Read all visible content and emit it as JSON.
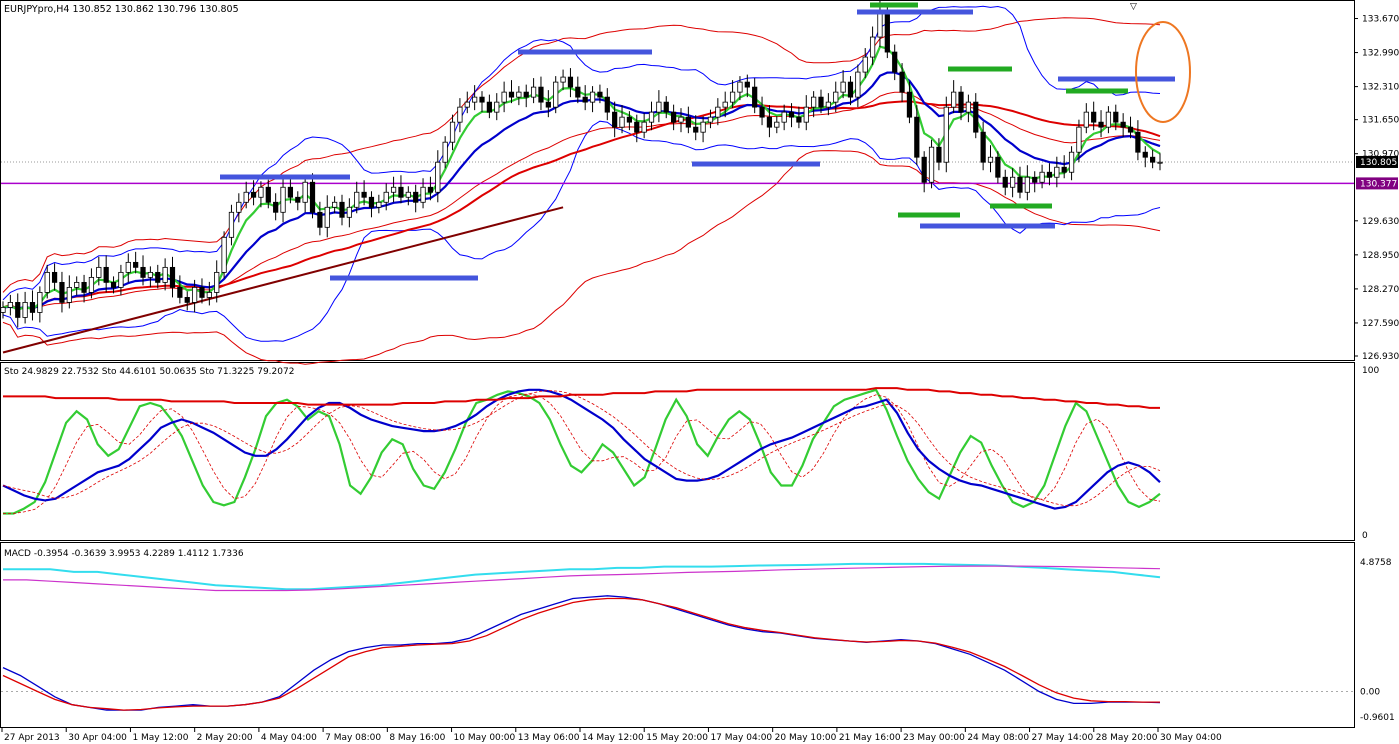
{
  "window": {
    "header": "EURJPYpro,H4  130.852 130.862 130.796 130.805",
    "top_marker": "▽"
  },
  "colors": {
    "background": "#ffffff",
    "frame": "#000000",
    "bull_candle": "#ffffff",
    "bear_candle": "#000000",
    "green": "#33cc33",
    "blue": "#0000cc",
    "thin_blue": "#0000ff",
    "red": "#dd0000",
    "dark_red": "#800000",
    "purple": "#aa00cc",
    "annotation_blue": "#4455dd",
    "annotation_green": "#22aa22",
    "orange": "#ee7722",
    "cyan": "#33ddee",
    "magenta": "#cc33cc",
    "price_tag": "#800080"
  },
  "chart_data": [
    {
      "type": "candlestick",
      "panel": "price",
      "symbol": "EURJPYpro",
      "timeframe": "H4",
      "ohlc_header": {
        "open": 130.852,
        "high": 130.862,
        "low": 130.796,
        "close": 130.805
      },
      "y_ticks": [
        "133.670",
        "132.990",
        "132.310",
        "131.650",
        "130.970",
        "129.630",
        "128.950",
        "128.270",
        "127.590",
        "126.930"
      ],
      "ylim": [
        126.85,
        134.0
      ],
      "current_price": "130.805",
      "horizontal_line": "130.377",
      "x_labels": [
        "27 Apr 2013",
        "30 Apr 04:00",
        "1 May 12:00",
        "2 May 20:00",
        "4 May 04:00",
        "7 May 08:00",
        "8 May 16:00",
        "10 May 00:00",
        "13 May 06:00",
        "14 May 12:00",
        "15 May 20:00",
        "17 May 04:00",
        "20 May 10:00",
        "21 May 16:00",
        "23 May 00:00",
        "24 May 08:00",
        "27 May 14:00",
        "28 May 20:00",
        "30 May 04:00"
      ],
      "close_series": [
        127.9,
        128.0,
        127.7,
        128.0,
        127.8,
        128.2,
        128.6,
        128.4,
        128.0,
        128.3,
        128.4,
        128.2,
        128.5,
        128.7,
        128.4,
        128.3,
        128.6,
        128.8,
        128.7,
        128.5,
        128.6,
        128.4,
        128.7,
        128.3,
        128.1,
        128.0,
        128.3,
        128.1,
        128.2,
        128.6,
        129.3,
        129.8,
        130.0,
        130.2,
        130.1,
        130.3,
        130.0,
        129.8,
        130.3,
        130.1,
        130.0,
        130.4,
        129.8,
        129.5,
        129.9,
        130.0,
        129.7,
        129.9,
        130.2,
        130.1,
        129.9,
        130.0,
        130.2,
        130.3,
        130.1,
        130.2,
        130.0,
        130.3,
        130.2,
        130.8,
        131.2,
        131.6,
        131.9,
        132.0,
        132.1,
        132.0,
        131.8,
        132.0,
        132.2,
        132.1,
        132.2,
        132.1,
        132.3,
        132.0,
        131.9,
        132.4,
        132.5,
        132.3,
        132.1,
        132.0,
        132.2,
        132.1,
        131.8,
        131.5,
        131.7,
        131.6,
        131.4,
        131.6,
        131.8,
        132.0,
        131.8,
        131.6,
        131.7,
        131.5,
        131.4,
        131.6,
        131.7,
        131.9,
        132.0,
        132.2,
        132.4,
        132.3,
        131.9,
        131.7,
        131.5,
        131.6,
        131.8,
        131.7,
        131.6,
        131.9,
        132.1,
        131.9,
        132.0,
        132.2,
        132.4,
        132.1,
        132.6,
        132.9,
        133.3,
        133.8,
        133.0,
        132.6,
        132.2,
        131.7,
        130.9,
        130.4,
        131.1,
        130.8,
        131.9,
        132.2,
        131.8,
        132.0,
        131.4,
        130.8,
        130.9,
        130.5,
        130.3,
        130.5,
        130.2,
        130.5,
        130.4,
        130.6,
        130.5,
        130.7,
        130.6,
        131.0,
        131.5,
        131.8,
        131.6,
        131.5,
        131.8,
        131.6,
        131.5,
        131.4,
        131.0,
        130.9,
        130.8,
        130.8
      ]
    },
    {
      "type": "line",
      "panel": "stochastic",
      "label": "Sto 24.9829 22.7532  Sto 44.6101 50.0635  Sto 71.3225 79.2072",
      "ylim": [
        0,
        100
      ],
      "y_ticks": [
        "100",
        "0"
      ],
      "series": [
        {
          "values": [
            13,
            13,
            16,
            20,
            32,
            50,
            68,
            75,
            70,
            55,
            48,
            52,
            65,
            78,
            80,
            78,
            70,
            60,
            45,
            30,
            20,
            18,
            20,
            35,
            52,
            72,
            80,
            82,
            78,
            70,
            75,
            72,
            55,
            30,
            25,
            35,
            50,
            58,
            55,
            40,
            30,
            28,
            38,
            52,
            68,
            80,
            82,
            85,
            87,
            86,
            84,
            80,
            70,
            55,
            42,
            38,
            45,
            55,
            50,
            40,
            30,
            35,
            52,
            70,
            82,
            72,
            55,
            48,
            60,
            70,
            75,
            70,
            55,
            38,
            30,
            30,
            42,
            58,
            68,
            78,
            82,
            84,
            86,
            88,
            76,
            60,
            45,
            34,
            26,
            22,
            36,
            50,
            60,
            56,
            42,
            30,
            20,
            17,
            20,
            30,
            48,
            66,
            80,
            75,
            60,
            45,
            30,
            20,
            17,
            20,
            25
          ]
        },
        {
          "values": [
            30,
            27,
            24,
            22,
            21,
            22,
            26,
            30,
            34,
            38,
            40,
            42,
            46,
            52,
            58,
            65,
            68,
            70,
            68,
            65,
            62,
            58,
            54,
            50,
            48,
            48,
            52,
            58,
            65,
            72,
            77,
            80,
            80,
            77,
            73,
            70,
            68,
            66,
            65,
            64,
            63,
            63,
            64,
            66,
            69,
            73,
            78,
            82,
            85,
            87,
            88,
            88,
            87,
            85,
            82,
            78,
            74,
            70,
            65,
            58,
            52,
            46,
            42,
            38,
            34,
            33,
            33,
            34,
            36,
            40,
            44,
            48,
            52,
            55,
            57,
            59,
            62,
            65,
            68,
            71,
            74,
            77,
            78,
            80,
            82,
            74,
            62,
            52,
            45,
            40,
            36,
            33,
            31,
            30,
            28,
            26,
            24,
            22,
            20,
            18,
            16,
            17,
            20,
            26,
            32,
            38,
            42,
            44,
            42,
            38,
            32
          ]
        },
        {
          "values": [
            84,
            84,
            84,
            84,
            84,
            83,
            83,
            83,
            83,
            83,
            83,
            82,
            82,
            82,
            82,
            82,
            81,
            81,
            81,
            81,
            81,
            81,
            80,
            80,
            80,
            80,
            80,
            80,
            80,
            79,
            79,
            79,
            79,
            79,
            79,
            79,
            79,
            79,
            80,
            80,
            80,
            80,
            81,
            81,
            81,
            82,
            82,
            82,
            83,
            83,
            83,
            84,
            84,
            84,
            85,
            85,
            85,
            85,
            86,
            86,
            86,
            86,
            87,
            87,
            87,
            87,
            88,
            88,
            88,
            88,
            88,
            88,
            88,
            88,
            88,
            88,
            88,
            88,
            88,
            88,
            88,
            88,
            88,
            89,
            89,
            89,
            88,
            88,
            88,
            87,
            87,
            86,
            86,
            85,
            85,
            84,
            84,
            83,
            83,
            82,
            82,
            81,
            81,
            80,
            80,
            79,
            79,
            78,
            78,
            77,
            77
          ]
        }
      ]
    },
    {
      "type": "line",
      "panel": "macd",
      "label": "MACD -0.3954 -0.3639 3.9953 4.2289 1.4112 1.7336",
      "y_ticks": [
        "4.8758",
        "0.00",
        "-0.9601"
      ],
      "ylim": [
        -1.3,
        5.4
      ],
      "series": [
        {
          "values": [
            4.6,
            4.6,
            4.6,
            4.5,
            4.5,
            4.4,
            4.3,
            4.2,
            4.1,
            4.0,
            3.95,
            3.9,
            3.85,
            3.85,
            3.9,
            3.95,
            4.0,
            4.1,
            4.2,
            4.3,
            4.4,
            4.45,
            4.5,
            4.55,
            4.6,
            4.6,
            4.65,
            4.65,
            4.7,
            4.7,
            4.7,
            4.72,
            4.74,
            4.75,
            4.76,
            4.78,
            4.8,
            4.8,
            4.8,
            4.8,
            4.78,
            4.76,
            4.74,
            4.7,
            4.66,
            4.6,
            4.55,
            4.5,
            4.4,
            4.3
          ]
        },
        {
          "values": [
            4.2,
            4.2,
            4.15,
            4.1,
            4.05,
            4.0,
            3.95,
            3.9,
            3.85,
            3.8,
            3.8,
            3.8,
            3.8,
            3.82,
            3.85,
            3.9,
            3.95,
            4.0,
            4.05,
            4.1,
            4.15,
            4.2,
            4.25,
            4.3,
            4.35,
            4.38,
            4.4,
            4.42,
            4.45,
            4.48,
            4.5,
            4.52,
            4.55,
            4.58,
            4.6,
            4.62,
            4.64,
            4.66,
            4.68,
            4.7,
            4.71,
            4.72,
            4.72,
            4.72,
            4.71,
            4.7,
            4.68,
            4.66,
            4.64,
            4.62
          ]
        },
        {
          "values": [
            0.9,
            0.6,
            0.2,
            -0.2,
            -0.5,
            -0.6,
            -0.7,
            -0.7,
            -0.7,
            -0.6,
            -0.55,
            -0.5,
            -0.55,
            -0.55,
            -0.5,
            -0.4,
            -0.2,
            0.3,
            0.8,
            1.2,
            1.5,
            1.65,
            1.75,
            1.75,
            1.8,
            1.8,
            1.85,
            2.0,
            2.3,
            2.6,
            2.9,
            3.1,
            3.3,
            3.5,
            3.55,
            3.6,
            3.55,
            3.45,
            3.3,
            3.1,
            2.9,
            2.7,
            2.5,
            2.35,
            2.25,
            2.2,
            2.1,
            2.0,
            1.95,
            1.9,
            1.85,
            1.9,
            1.95,
            1.9,
            1.8,
            1.6,
            1.4,
            1.1,
            0.8,
            0.4,
            0.0,
            -0.3,
            -0.45,
            -0.45,
            -0.4,
            -0.4,
            -0.4,
            -0.42
          ]
        },
        {
          "values": [
            0.6,
            0.3,
            0.0,
            -0.3,
            -0.5,
            -0.6,
            -0.65,
            -0.7,
            -0.68,
            -0.62,
            -0.58,
            -0.55,
            -0.55,
            -0.55,
            -0.5,
            -0.4,
            -0.25,
            0.1,
            0.5,
            0.9,
            1.3,
            1.5,
            1.65,
            1.7,
            1.75,
            1.78,
            1.8,
            1.9,
            2.1,
            2.4,
            2.7,
            2.95,
            3.15,
            3.35,
            3.45,
            3.5,
            3.5,
            3.45,
            3.3,
            3.15,
            2.95,
            2.75,
            2.55,
            2.4,
            2.3,
            2.22,
            2.12,
            2.02,
            1.96,
            1.9,
            1.86,
            1.88,
            1.92,
            1.9,
            1.82,
            1.66,
            1.48,
            1.22,
            0.94,
            0.6,
            0.25,
            -0.05,
            -0.25,
            -0.35,
            -0.38,
            -0.38,
            -0.4,
            -0.4
          ]
        }
      ]
    }
  ]
}
